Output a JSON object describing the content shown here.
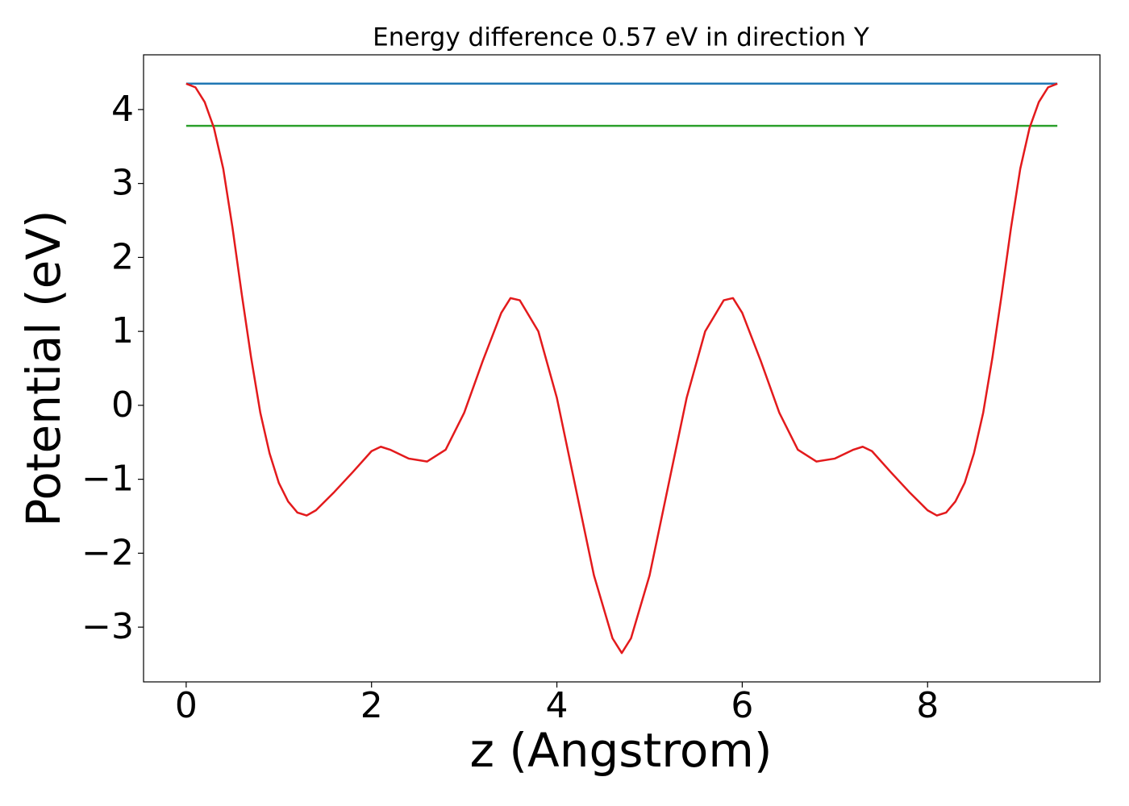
{
  "chart_data": {
    "type": "line",
    "title": "Energy difference 0.57 eV in direction Y",
    "x_label": "z (Angstrom)",
    "y_label": "Potential (eV)",
    "xlim": [
      -0.46,
      9.86
    ],
    "ylim": [
      -3.74,
      4.74
    ],
    "xticks": [
      0,
      2,
      4,
      6,
      8
    ],
    "yticks": [
      {
        "value": -3,
        "label": "−3"
      },
      {
        "value": -2,
        "label": "−2"
      },
      {
        "value": -1,
        "label": "−1"
      },
      0,
      1,
      2,
      3,
      4
    ],
    "grid": false,
    "series": [
      {
        "color": "#1f77b4",
        "x": [
          0,
          9.4
        ],
        "values": [
          4.35,
          4.35
        ]
      },
      {
        "color": "#2ca02c",
        "x": [
          0,
          9.4
        ],
        "values": [
          3.78,
          3.78
        ]
      },
      {
        "color": "#e31a1c",
        "x": [
          0,
          0.1,
          0.2,
          0.3,
          0.4,
          0.5,
          0.6,
          0.7,
          0.8,
          0.9,
          1.0,
          1.1,
          1.2,
          1.3,
          1.4,
          1.6,
          1.8,
          2.0,
          2.1,
          2.2,
          2.4,
          2.6,
          2.8,
          3.0,
          3.2,
          3.4,
          3.5,
          3.6,
          3.8,
          4.0,
          4.2,
          4.4,
          4.6,
          4.7,
          4.8,
          5.0,
          5.2,
          5.4,
          5.6,
          5.8,
          5.9,
          6.0,
          6.2,
          6.4,
          6.6,
          6.8,
          7.0,
          7.2,
          7.3,
          7.4,
          7.6,
          7.8,
          8.0,
          8.1,
          8.2,
          8.3,
          8.4,
          8.5,
          8.6,
          8.7,
          8.8,
          8.9,
          9.0,
          9.1,
          9.2,
          9.3,
          9.4
        ],
        "values": [
          4.35,
          4.3,
          4.1,
          3.75,
          3.2,
          2.4,
          1.5,
          0.65,
          -0.1,
          -0.65,
          -1.05,
          -1.3,
          -1.45,
          -1.49,
          -1.42,
          -1.17,
          -0.9,
          -0.62,
          -0.56,
          -0.6,
          -0.72,
          -0.76,
          -0.6,
          -0.1,
          0.6,
          1.25,
          1.45,
          1.42,
          1.0,
          0.1,
          -1.1,
          -2.3,
          -3.15,
          -3.35,
          -3.15,
          -2.3,
          -1.1,
          0.1,
          1.0,
          1.42,
          1.45,
          1.25,
          0.6,
          -0.1,
          -0.6,
          -0.76,
          -0.72,
          -0.6,
          -0.56,
          -0.62,
          -0.9,
          -1.17,
          -1.42,
          -1.49,
          -1.45,
          -1.3,
          -1.05,
          -0.65,
          -0.1,
          0.65,
          1.5,
          2.4,
          3.2,
          3.75,
          4.1,
          4.3,
          4.35
        ]
      }
    ]
  }
}
